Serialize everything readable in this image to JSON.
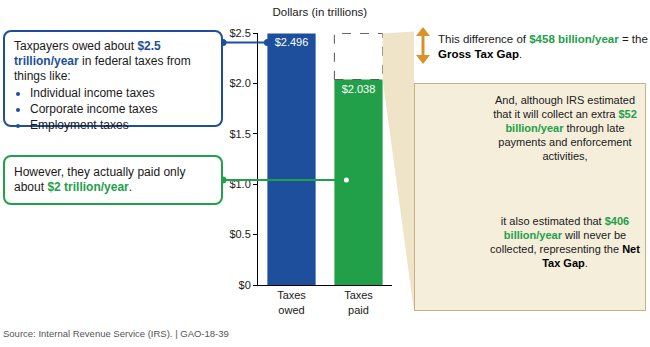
{
  "chart_data": {
    "type": "bar",
    "title": "Dollars (in trillions)",
    "categories": [
      "Taxes owed",
      "Taxes paid"
    ],
    "values": [
      2.496,
      2.038
    ],
    "value_labels": [
      "$2.496",
      "$2.038"
    ],
    "colors": [
      "#1d4f9c",
      "#22a049"
    ],
    "ylim": [
      0,
      2.5
    ],
    "yticks": [
      {
        "value": 0,
        "label": "$0"
      },
      {
        "value": 0.5,
        "label": "$0.5"
      },
      {
        "value": 1,
        "label": "$1.0"
      },
      {
        "value": 1.5,
        "label": "$1.5"
      },
      {
        "value": 2,
        "label": "$2.0"
      },
      {
        "value": 2.5,
        "label": "$2.5"
      }
    ],
    "data_labels": true,
    "grid": false
  },
  "annotations": {
    "owed": {
      "text": "Taxpayers owed about $2.5 trillion/year in federal taxes from things like:",
      "bold": [
        "$2.5 trillion/year"
      ],
      "items": [
        "Individual income taxes",
        "Corporate income taxes",
        "Employment taxes"
      ]
    },
    "paid": {
      "text": "However, they actually paid only about $2 trillion/year.",
      "bold": [
        "$2 trillion/year"
      ]
    },
    "gross_gap": {
      "text": "This difference of $458 billion/year = the Gross Tax Gap.",
      "bold": [
        "$458 billion/year",
        "Gross Tax Gap"
      ]
    },
    "collected": {
      "text": "And, although IRS estimated that it will collect an extra $52 billion/year through late payments and enforcement activities,",
      "bold": [
        "$52 billion/year"
      ]
    },
    "net_gap": {
      "text": "it also estimated that $406 billion/year will never be collected, representing the Net Tax Gap.",
      "bold": [
        "$406 billion/year",
        "Net Tax Gap"
      ]
    }
  },
  "source": "Source: Internal Revenue Service (IRS).  |  GAO-18-39"
}
